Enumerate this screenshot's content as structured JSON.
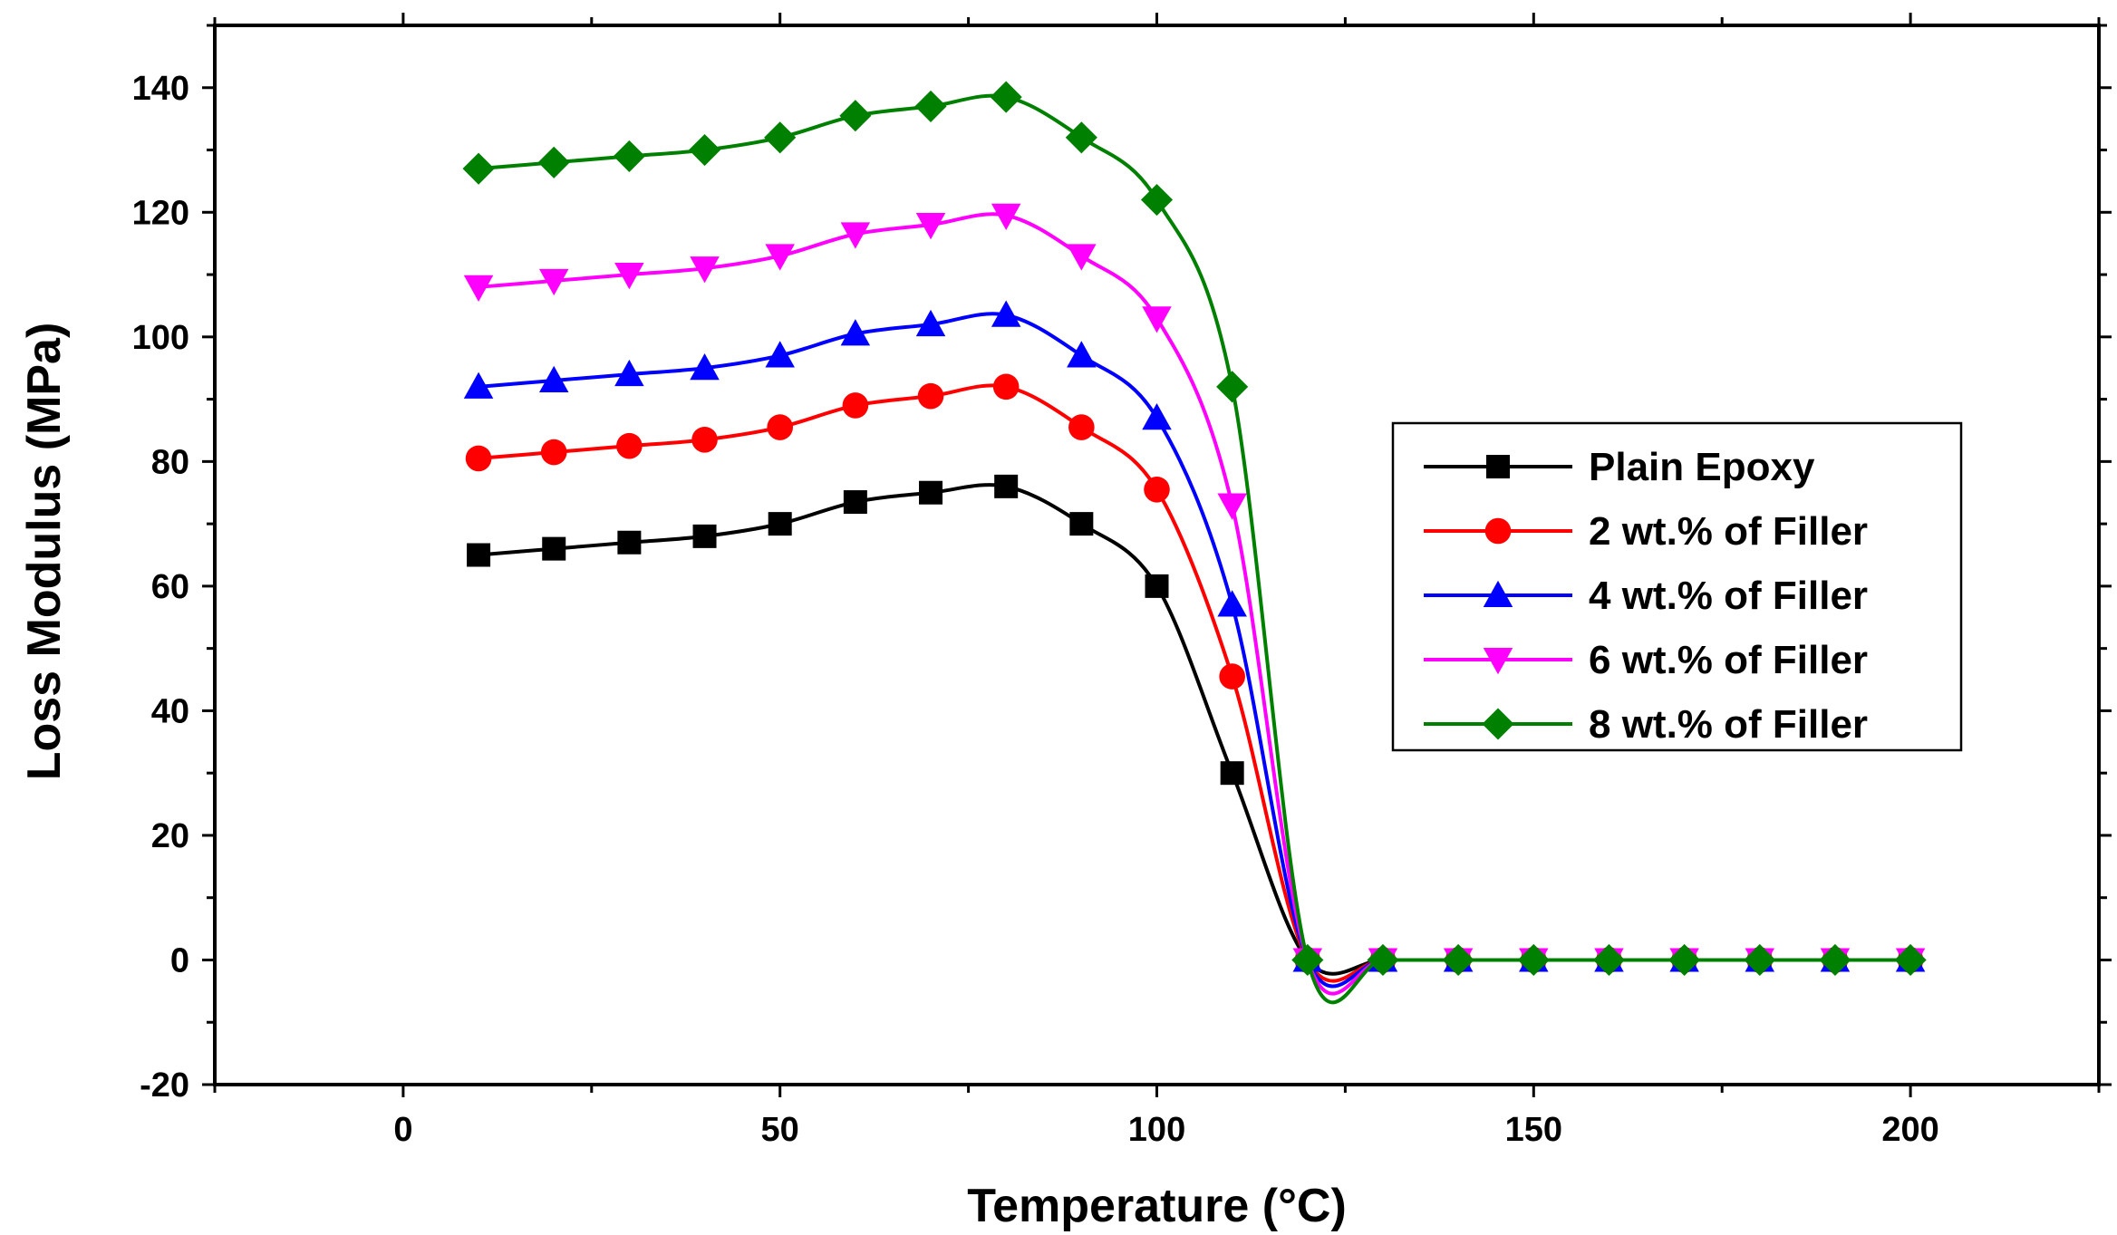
{
  "chart_data": {
    "type": "line",
    "xlabel": "Temperature (°C)",
    "ylabel": "Loss Modulus (MPa)",
    "xlim": [
      -25,
      225
    ],
    "ylim": [
      -20,
      150
    ],
    "xticks": [
      0,
      50,
      100,
      150,
      200
    ],
    "yticks": [
      -20,
      0,
      20,
      40,
      60,
      80,
      100,
      120,
      140
    ],
    "x": [
      10,
      20,
      30,
      40,
      50,
      60,
      70,
      80,
      90,
      100,
      110,
      120,
      130,
      140,
      150,
      160,
      170,
      180,
      190,
      200
    ],
    "series": [
      {
        "name": "Plain Epoxy",
        "color": "#000000",
        "marker": "square",
        "values": [
          65,
          66,
          67,
          68,
          70,
          73.5,
          75,
          76,
          70,
          60,
          30,
          0,
          0,
          0,
          0,
          0,
          0,
          0,
          0,
          0
        ]
      },
      {
        "name": "2 wt.% of Filler",
        "color": "#ff0000",
        "marker": "circle",
        "values": [
          80.5,
          81.5,
          82.5,
          83.5,
          85.5,
          89,
          90.5,
          92,
          85.5,
          75.5,
          45.5,
          0,
          0,
          0,
          0,
          0,
          0,
          0,
          0,
          0
        ]
      },
      {
        "name": "4 wt.% of Filler",
        "color": "#0000ff",
        "marker": "triangle-up",
        "values": [
          92,
          93,
          94,
          95,
          97,
          100.5,
          102,
          103.5,
          97,
          87,
          57,
          0,
          0,
          0,
          0,
          0,
          0,
          0,
          0,
          0
        ]
      },
      {
        "name": "6 wt.% of Filler",
        "color": "#ff00ff",
        "marker": "triangle-down",
        "values": [
          108,
          109,
          110,
          111,
          113,
          116.5,
          118,
          119.5,
          113,
          103,
          73,
          0,
          0,
          0,
          0,
          0,
          0,
          0,
          0,
          0
        ]
      },
      {
        "name": "8 wt.% of Filler",
        "color": "#008000",
        "marker": "diamond",
        "values": [
          127,
          128,
          129,
          130,
          132,
          135.5,
          137,
          138.5,
          132,
          122,
          92,
          0,
          0,
          0,
          0,
          0,
          0,
          0,
          0,
          0
        ]
      }
    ],
    "legend_position": "right"
  }
}
